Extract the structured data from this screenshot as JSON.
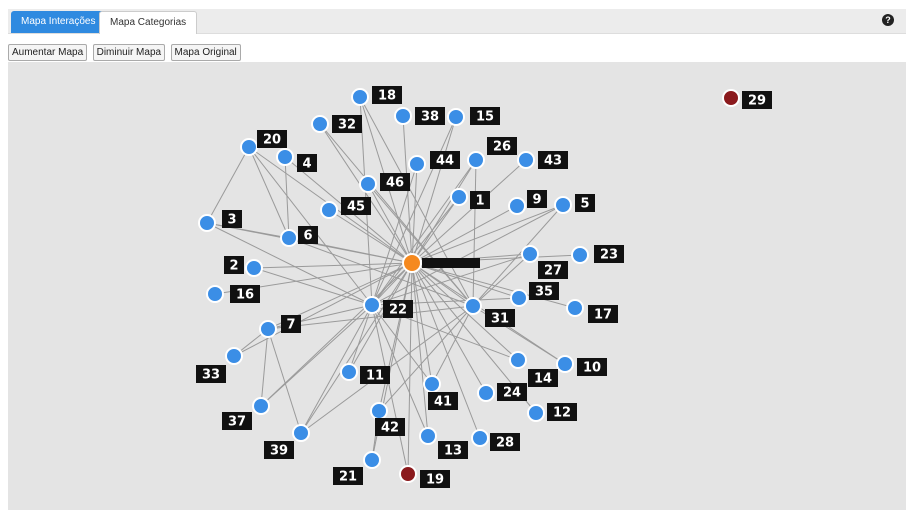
{
  "tabs": [
    "Mapa Interações",
    "Mapa Categorias"
  ],
  "help_icon": "?",
  "buttons": [
    "Aumentar Mapa",
    "Diminuir Mapa",
    "Mapa Original"
  ],
  "nodes": [
    {
      "label": "18"
    },
    {
      "label": "38"
    },
    {
      "label": "15"
    },
    {
      "label": "32"
    },
    {
      "label": "20"
    },
    {
      "label": "4"
    },
    {
      "label": "26"
    },
    {
      "label": "43"
    },
    {
      "label": "44"
    },
    {
      "label": "46"
    },
    {
      "label": "1"
    },
    {
      "label": "9"
    },
    {
      "label": "5"
    },
    {
      "label": "45"
    },
    {
      "label": "3"
    },
    {
      "label": "6"
    },
    {
      "label": "2"
    },
    {
      "label": "23"
    },
    {
      "label": "27"
    },
    {
      "label": "16"
    },
    {
      "label": "22"
    },
    {
      "label": "31"
    },
    {
      "label": "35"
    },
    {
      "label": "17"
    },
    {
      "label": "7"
    },
    {
      "label": "33"
    },
    {
      "label": "11"
    },
    {
      "label": "10"
    },
    {
      "label": "14"
    },
    {
      "label": "24"
    },
    {
      "label": "41"
    },
    {
      "label": "12"
    },
    {
      "label": "37"
    },
    {
      "label": "42"
    },
    {
      "label": "13"
    },
    {
      "label": "28"
    },
    {
      "label": "39"
    },
    {
      "label": "21"
    },
    {
      "label": "19"
    },
    {
      "label": "29"
    }
  ]
}
